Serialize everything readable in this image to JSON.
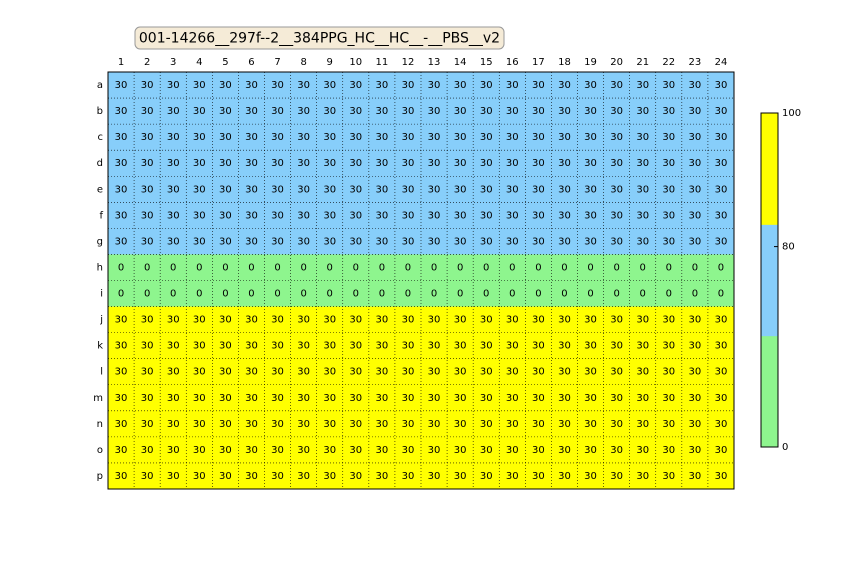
{
  "chart_data": {
    "type": "heatmap",
    "title": "001-14266__297f--2__384PPG_HC__HC__-__PBS__v2",
    "columns": [
      1,
      2,
      3,
      4,
      5,
      6,
      7,
      8,
      9,
      10,
      11,
      12,
      13,
      14,
      15,
      16,
      17,
      18,
      19,
      20,
      21,
      22,
      23,
      24
    ],
    "series": [
      {
        "name": "a",
        "color": "#87cefa",
        "values": [
          30,
          30,
          30,
          30,
          30,
          30,
          30,
          30,
          30,
          30,
          30,
          30,
          30,
          30,
          30,
          30,
          30,
          30,
          30,
          30,
          30,
          30,
          30,
          30
        ]
      },
      {
        "name": "b",
        "color": "#87cefa",
        "values": [
          30,
          30,
          30,
          30,
          30,
          30,
          30,
          30,
          30,
          30,
          30,
          30,
          30,
          30,
          30,
          30,
          30,
          30,
          30,
          30,
          30,
          30,
          30,
          30
        ]
      },
      {
        "name": "c",
        "color": "#87cefa",
        "values": [
          30,
          30,
          30,
          30,
          30,
          30,
          30,
          30,
          30,
          30,
          30,
          30,
          30,
          30,
          30,
          30,
          30,
          30,
          30,
          30,
          30,
          30,
          30,
          30
        ]
      },
      {
        "name": "d",
        "color": "#87cefa",
        "values": [
          30,
          30,
          30,
          30,
          30,
          30,
          30,
          30,
          30,
          30,
          30,
          30,
          30,
          30,
          30,
          30,
          30,
          30,
          30,
          30,
          30,
          30,
          30,
          30
        ]
      },
      {
        "name": "e",
        "color": "#87cefa",
        "values": [
          30,
          30,
          30,
          30,
          30,
          30,
          30,
          30,
          30,
          30,
          30,
          30,
          30,
          30,
          30,
          30,
          30,
          30,
          30,
          30,
          30,
          30,
          30,
          30
        ]
      },
      {
        "name": "f",
        "color": "#87cefa",
        "values": [
          30,
          30,
          30,
          30,
          30,
          30,
          30,
          30,
          30,
          30,
          30,
          30,
          30,
          30,
          30,
          30,
          30,
          30,
          30,
          30,
          30,
          30,
          30,
          30
        ]
      },
      {
        "name": "g",
        "color": "#87cefa",
        "values": [
          30,
          30,
          30,
          30,
          30,
          30,
          30,
          30,
          30,
          30,
          30,
          30,
          30,
          30,
          30,
          30,
          30,
          30,
          30,
          30,
          30,
          30,
          30,
          30
        ]
      },
      {
        "name": "h",
        "color": "#8ef58e",
        "values": [
          0,
          0,
          0,
          0,
          0,
          0,
          0,
          0,
          0,
          0,
          0,
          0,
          0,
          0,
          0,
          0,
          0,
          0,
          0,
          0,
          0,
          0,
          0,
          0
        ]
      },
      {
        "name": "i",
        "color": "#8ef58e",
        "values": [
          0,
          0,
          0,
          0,
          0,
          0,
          0,
          0,
          0,
          0,
          0,
          0,
          0,
          0,
          0,
          0,
          0,
          0,
          0,
          0,
          0,
          0,
          0,
          0
        ]
      },
      {
        "name": "j",
        "color": "#ffff00",
        "values": [
          30,
          30,
          30,
          30,
          30,
          30,
          30,
          30,
          30,
          30,
          30,
          30,
          30,
          30,
          30,
          30,
          30,
          30,
          30,
          30,
          30,
          30,
          30,
          30
        ]
      },
      {
        "name": "k",
        "color": "#ffff00",
        "values": [
          30,
          30,
          30,
          30,
          30,
          30,
          30,
          30,
          30,
          30,
          30,
          30,
          30,
          30,
          30,
          30,
          30,
          30,
          30,
          30,
          30,
          30,
          30,
          30
        ]
      },
      {
        "name": "l",
        "color": "#ffff00",
        "values": [
          30,
          30,
          30,
          30,
          30,
          30,
          30,
          30,
          30,
          30,
          30,
          30,
          30,
          30,
          30,
          30,
          30,
          30,
          30,
          30,
          30,
          30,
          30,
          30
        ]
      },
      {
        "name": "m",
        "color": "#ffff00",
        "values": [
          30,
          30,
          30,
          30,
          30,
          30,
          30,
          30,
          30,
          30,
          30,
          30,
          30,
          30,
          30,
          30,
          30,
          30,
          30,
          30,
          30,
          30,
          30,
          30
        ]
      },
      {
        "name": "n",
        "color": "#ffff00",
        "values": [
          30,
          30,
          30,
          30,
          30,
          30,
          30,
          30,
          30,
          30,
          30,
          30,
          30,
          30,
          30,
          30,
          30,
          30,
          30,
          30,
          30,
          30,
          30,
          30
        ]
      },
      {
        "name": "o",
        "color": "#ffff00",
        "values": [
          30,
          30,
          30,
          30,
          30,
          30,
          30,
          30,
          30,
          30,
          30,
          30,
          30,
          30,
          30,
          30,
          30,
          30,
          30,
          30,
          30,
          30,
          30,
          30
        ]
      },
      {
        "name": "p",
        "color": "#ffff00",
        "values": [
          30,
          30,
          30,
          30,
          30,
          30,
          30,
          30,
          30,
          30,
          30,
          30,
          30,
          30,
          30,
          30,
          30,
          30,
          30,
          30,
          30,
          30,
          30,
          30
        ]
      }
    ],
    "colorbar": {
      "colors": [
        "#8ef58e",
        "#87cefa",
        "#ffff00"
      ],
      "ticks": [
        0,
        80,
        100
      ]
    },
    "grid": true
  }
}
